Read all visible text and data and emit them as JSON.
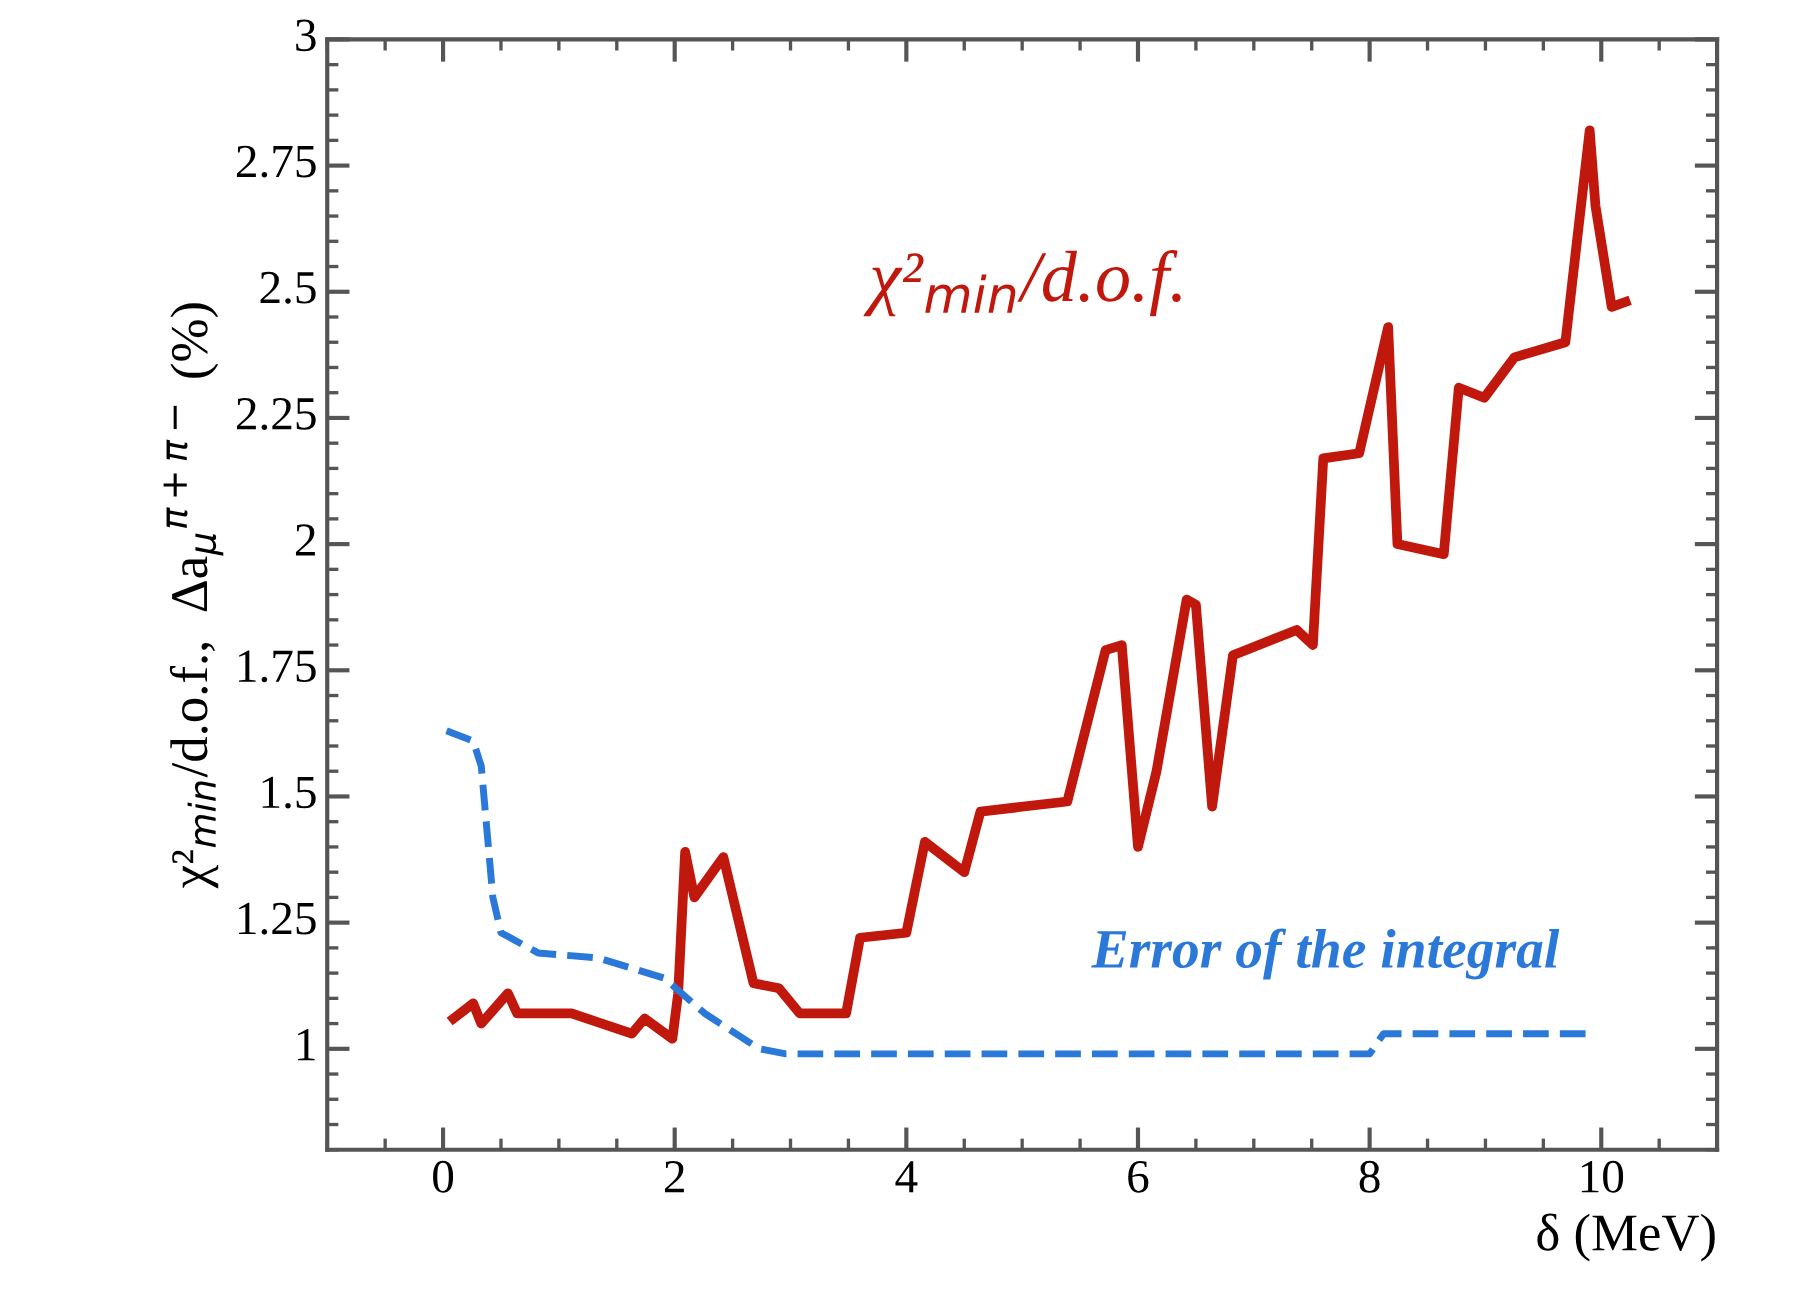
{
  "chart_data": {
    "type": "line",
    "xlabel": "δ (MeV)",
    "ylabel": "χ²$_{min}$/d.o.f.,  Δa$_{μ}$$^{π+π−}$ (%)",
    "xlim": [
      -1,
      11
    ],
    "xticks": [
      0,
      2,
      4,
      6,
      8,
      10
    ],
    "ylim": [
      0.8,
      3
    ],
    "yticks": [
      1,
      1.25,
      1.5,
      1.75,
      2,
      2.25,
      2.5,
      2.75,
      3
    ],
    "grid": false,
    "legend": false,
    "series": [
      {
        "name": "χ²$_{min}$/d.o.f.",
        "color": "#c0180c",
        "line_style": "solid",
        "x": [
          0.09,
          0.26,
          0.33,
          0.56,
          0.64,
          1.11,
          1.63,
          1.74,
          1.98,
          2.03,
          2.09,
          2.17,
          2.42,
          2.68,
          2.9,
          3.08,
          3.48,
          3.6,
          4.0,
          4.16,
          4.5,
          4.64,
          5.39,
          5.72,
          5.86,
          6.0,
          6.16,
          6.42,
          6.5,
          6.64,
          6.82,
          7.37,
          7.51,
          7.6,
          7.91,
          8.16,
          8.24,
          8.64,
          8.77,
          8.99,
          9.25,
          9.69,
          9.9,
          9.95,
          10.09,
          10.21
        ],
        "values": [
          1.06,
          1.09,
          1.05,
          1.11,
          1.07,
          1.07,
          1.03,
          1.06,
          1.02,
          1.11,
          1.39,
          1.3,
          1.38,
          1.13,
          1.12,
          1.07,
          1.07,
          1.22,
          1.23,
          1.41,
          1.35,
          1.47,
          1.49,
          1.79,
          1.8,
          1.4,
          1.55,
          1.89,
          1.88,
          1.48,
          1.78,
          1.83,
          1.8,
          2.17,
          2.18,
          2.43,
          2.0,
          1.98,
          2.31,
          2.29,
          2.37,
          2.4,
          2.82,
          2.67,
          2.47,
          2.48
        ]
      },
      {
        "name": "Error of the integral",
        "color": "#2a78d8",
        "line_style": "dashed",
        "x": [
          0.03,
          0.26,
          0.33,
          0.43,
          0.5,
          0.82,
          1.34,
          1.91,
          2.26,
          2.73,
          2.96,
          8.0,
          8.12,
          9.91
        ],
        "values": [
          1.63,
          1.61,
          1.56,
          1.3,
          1.23,
          1.19,
          1.18,
          1.14,
          1.07,
          1.0,
          0.99,
          0.99,
          1.03,
          1.03
        ]
      }
    ]
  }
}
